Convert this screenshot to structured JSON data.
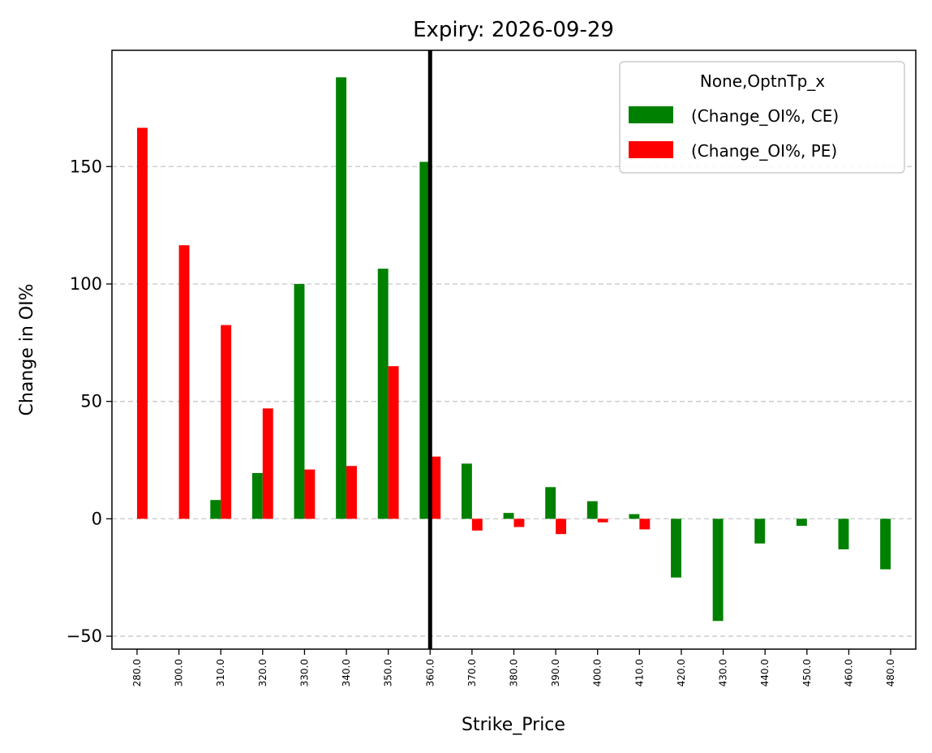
{
  "chart_data": {
    "type": "bar",
    "title": "Expiry: 2026-09-29",
    "xlabel": "Strike_Price",
    "ylabel": "Change in OI%",
    "categories": [
      "280.0",
      "300.0",
      "310.0",
      "320.0",
      "330.0",
      "340.0",
      "350.0",
      "360.0",
      "370.0",
      "380.0",
      "390.0",
      "400.0",
      "410.0",
      "420.0",
      "430.0",
      "440.0",
      "450.0",
      "460.0",
      "480.0"
    ],
    "series": [
      {
        "name": "(Change_OI%, CE)",
        "color": "#008000",
        "values": [
          0,
          0,
          8,
          19.5,
          100,
          188,
          106.5,
          152,
          23.5,
          2.5,
          13.5,
          7.5,
          2,
          -25,
          -43.5,
          -10.5,
          -3,
          -13,
          -21.5
        ]
      },
      {
        "name": "(Change_OI%, PE)",
        "color": "#ff0000",
        "values": [
          166.5,
          116.5,
          82.5,
          47,
          21,
          22.5,
          65,
          26.5,
          -5,
          -3.5,
          -6.5,
          -1.5,
          -4.5,
          0,
          0,
          0,
          0,
          0,
          0
        ]
      }
    ],
    "yticks": [
      -50,
      0,
      50,
      100,
      150
    ],
    "ylim": [
      -55.5,
      199.5
    ],
    "grid": "y, dashed",
    "legend": {
      "title": "None,OptnTp_x",
      "placement": "top-right"
    },
    "vline": {
      "category": "360.0",
      "color": "#000000"
    }
  }
}
